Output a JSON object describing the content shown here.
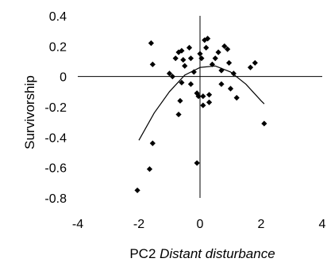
{
  "chart_data": {
    "type": "scatter",
    "xlabel": {
      "prefix": "PC2 ",
      "italic": "Distant disturbance"
    },
    "ylabel": "Survivorship",
    "xlim": [
      -4,
      4
    ],
    "ylim": [
      -0.8,
      0.4
    ],
    "xticks": [
      "-4",
      "-2",
      "0",
      "2",
      "4"
    ],
    "yticks": [
      "0.4",
      "0.2",
      "0",
      "-0.2",
      "-0.4",
      "-0.6",
      "-0.8"
    ],
    "grid": false,
    "marker_color": "#000000",
    "series": [
      {
        "marker": "diamond",
        "points": [
          [
            -1.6,
            0.22
          ],
          [
            -1.55,
            0.08
          ],
          [
            -1.55,
            -0.44
          ],
          [
            -1.65,
            -0.61
          ],
          [
            -2.05,
            -0.75
          ],
          [
            -1.0,
            0.02
          ],
          [
            -0.9,
            0.0
          ],
          [
            -0.8,
            0.12
          ],
          [
            -0.7,
            0.16
          ],
          [
            -0.6,
            0.17
          ],
          [
            -0.55,
            0.11
          ],
          [
            -0.5,
            0.07
          ],
          [
            -0.6,
            -0.04
          ],
          [
            -0.65,
            -0.16
          ],
          [
            -0.7,
            -0.25
          ],
          [
            -0.35,
            0.19
          ],
          [
            -0.3,
            0.12
          ],
          [
            -0.3,
            -0.05
          ],
          [
            -0.2,
            0.03
          ],
          [
            -0.1,
            -0.11
          ],
          [
            -0.05,
            -0.13
          ],
          [
            0.0,
            0.15
          ],
          [
            0.05,
            0.12
          ],
          [
            0.1,
            -0.13
          ],
          [
            0.1,
            -0.19
          ],
          [
            0.15,
            0.24
          ],
          [
            0.25,
            0.25
          ],
          [
            0.2,
            0.19
          ],
          [
            0.3,
            -0.12
          ],
          [
            0.3,
            -0.17
          ],
          [
            0.4,
            0.08
          ],
          [
            0.5,
            0.12
          ],
          [
            0.6,
            0.16
          ],
          [
            0.7,
            0.04
          ],
          [
            0.7,
            -0.05
          ],
          [
            0.8,
            0.2
          ],
          [
            0.9,
            0.18
          ],
          [
            0.95,
            0.09
          ],
          [
            1.0,
            -0.08
          ],
          [
            1.1,
            0.02
          ],
          [
            1.2,
            -0.14
          ],
          [
            1.65,
            0.06
          ],
          [
            1.8,
            0.09
          ],
          [
            2.1,
            -0.31
          ],
          [
            -0.1,
            -0.57
          ]
        ]
      },
      {
        "type": "line",
        "style": "quadratic-fit",
        "x": [
          -2.0,
          -1.5,
          -1.0,
          -0.5,
          0.0,
          0.5,
          1.0,
          1.5,
          2.0,
          2.1
        ],
        "y": [
          -0.42,
          -0.24,
          -0.1,
          0.01,
          0.06,
          0.07,
          0.03,
          -0.05,
          -0.16,
          -0.18
        ]
      }
    ]
  }
}
